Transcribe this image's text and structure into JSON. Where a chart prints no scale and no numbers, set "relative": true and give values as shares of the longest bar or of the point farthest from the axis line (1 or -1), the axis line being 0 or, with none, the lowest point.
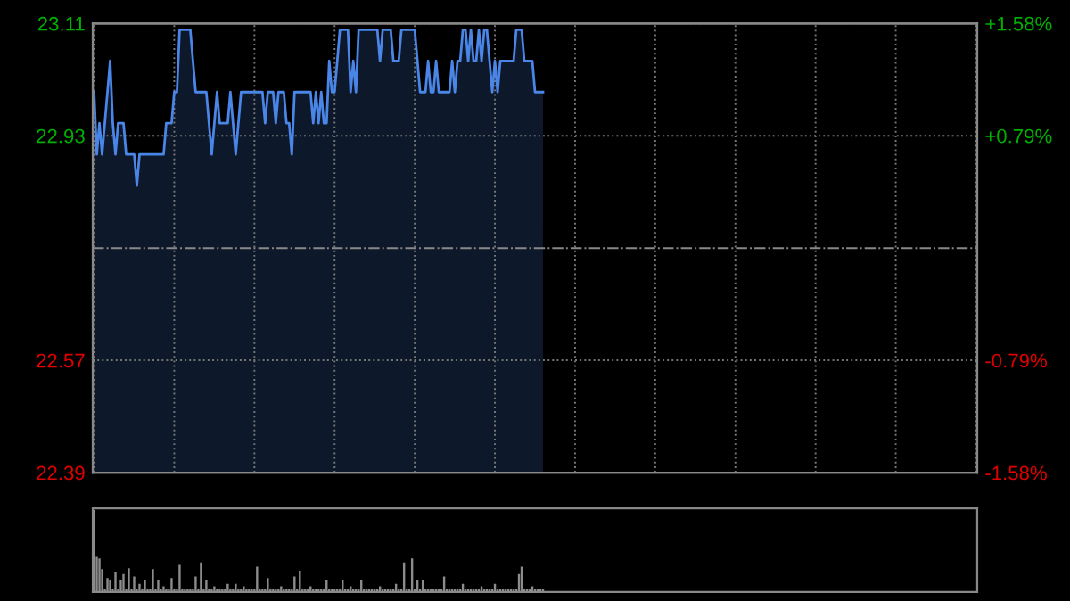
{
  "chart_data": [
    {
      "type": "area",
      "categories": [
        null,
        null,
        null,
        null,
        null,
        null,
        null,
        null,
        null,
        null,
        null,
        null,
        null,
        null,
        null,
        null,
        null,
        null,
        null,
        null,
        null,
        null,
        null,
        null,
        null,
        null,
        null,
        null,
        null,
        null,
        null,
        null,
        null,
        null,
        null,
        null,
        null,
        null,
        null,
        null,
        null,
        null,
        null,
        null,
        null,
        null,
        null,
        null,
        null,
        null,
        null,
        null,
        null,
        null,
        null,
        null,
        null,
        null,
        null,
        null,
        null,
        null,
        null,
        null,
        null,
        null,
        null,
        null,
        null,
        null,
        null,
        null,
        null,
        null,
        null,
        null,
        null,
        null,
        null,
        null,
        null,
        null,
        null,
        null,
        null,
        null,
        null,
        null,
        null,
        null,
        null,
        null,
        null,
        null,
        null,
        null,
        null,
        null,
        null,
        null,
        null,
        null,
        null,
        null,
        null,
        null,
        null,
        null,
        null,
        null,
        null,
        null,
        null,
        null,
        null,
        null,
        null,
        null,
        null,
        null,
        null,
        null,
        null,
        null,
        null,
        null,
        null,
        null,
        null,
        null,
        null,
        null,
        null,
        null,
        null,
        null,
        null,
        null,
        null,
        null,
        null,
        null,
        null,
        null,
        null,
        null,
        null,
        null,
        null,
        null,
        null,
        null,
        null,
        null,
        null,
        null,
        null,
        null,
        null,
        null,
        null,
        null,
        null,
        null,
        null,
        null,
        null,
        null,
        null,
        null,
        null,
        null,
        null,
        null,
        null,
        null,
        null,
        null,
        null,
        null,
        null,
        null,
        null,
        null,
        null,
        null,
        null,
        null,
        null,
        null,
        null,
        null,
        null,
        null,
        null,
        null,
        null,
        null,
        null,
        null,
        null,
        null,
        null,
        null,
        null,
        null,
        null,
        null,
        null,
        null,
        null,
        null,
        null,
        null,
        null,
        null,
        null,
        null,
        null,
        null,
        null,
        null,
        null,
        null,
        null,
        null,
        null,
        null,
        null,
        null,
        null,
        null,
        null,
        null,
        null,
        null,
        null,
        null,
        null,
        null,
        null,
        null,
        null,
        null,
        null,
        null,
        null,
        null,
        null,
        null,
        null,
        null,
        null,
        null,
        null,
        null,
        null,
        null,
        null,
        null,
        null,
        null,
        null,
        null,
        null,
        null,
        null,
        null,
        null,
        null,
        null,
        null,
        null,
        null,
        null,
        null,
        null,
        null,
        null,
        null,
        null,
        null,
        null,
        null,
        null,
        null,
        null,
        null,
        null,
        null,
        null,
        null,
        null,
        null,
        null,
        null,
        null,
        null,
        null,
        null,
        null,
        null,
        null,
        null,
        null,
        null,
        null,
        null,
        null,
        null,
        null,
        null,
        null,
        null,
        null,
        null,
        null,
        null,
        null,
        null,
        null,
        null,
        null,
        null,
        null,
        null,
        null,
        null,
        null,
        null,
        null
      ],
      "series": [
        {
          "color": "#4a86e8",
          "values": [
            23.0,
            22.9,
            22.95,
            22.9,
            22.95,
            23.0,
            23.05,
            22.95,
            22.9,
            22.95,
            22.95,
            22.95,
            22.9,
            22.9,
            22.9,
            22.9,
            22.85,
            22.9,
            22.9,
            22.9,
            22.9,
            22.9,
            22.9,
            22.9,
            22.9,
            22.9,
            22.9,
            22.95,
            22.95,
            22.95,
            23.0,
            23.0,
            23.1,
            23.1,
            23.1,
            23.1,
            23.1,
            23.05,
            23.0,
            23.0,
            23.0,
            23.0,
            23.0,
            22.95,
            22.9,
            22.95,
            23.0,
            22.95,
            22.95,
            22.95,
            22.95,
            23.0,
            22.95,
            22.9,
            22.95,
            23.0,
            23.0,
            23.0,
            23.0,
            23.0,
            23.0,
            23.0,
            23.0,
            23.0,
            22.95,
            23.0,
            23.0,
            23.0,
            22.95,
            23.0,
            23.0,
            23.0,
            22.95,
            22.95,
            22.9,
            23.0,
            23.0,
            23.0,
            23.0,
            23.0,
            23.0,
            23.0,
            22.95,
            23.0,
            22.95,
            23.0,
            22.95,
            22.95,
            23.05,
            23.0,
            23.0,
            23.05,
            23.1,
            23.1,
            23.1,
            23.1,
            23.0,
            23.05,
            23.0,
            23.1,
            23.1,
            23.1,
            23.1,
            23.1,
            23.1,
            23.1,
            23.1,
            23.05,
            23.1,
            23.1,
            23.1,
            23.1,
            23.05,
            23.05,
            23.05,
            23.1,
            23.1,
            23.1,
            23.1,
            23.1,
            23.1,
            23.05,
            23.0,
            23.0,
            23.0,
            23.05,
            23.0,
            23.0,
            23.05,
            23.0,
            23.0,
            23.0,
            23.0,
            23.0,
            23.05,
            23.0,
            23.05,
            23.05,
            23.1,
            23.1,
            23.05,
            23.1,
            23.05,
            23.05,
            23.1,
            23.05,
            23.1,
            23.1,
            23.05,
            23.0,
            23.05,
            23.0,
            23.05,
            23.05,
            23.05,
            23.05,
            23.05,
            23.05,
            23.1,
            23.1,
            23.1,
            23.05,
            23.05,
            23.05,
            23.05,
            23.0,
            23.0,
            23.0,
            23.0,
            null,
            null,
            null,
            null,
            null,
            null,
            null,
            null,
            null,
            null,
            null,
            null,
            null,
            null,
            null,
            null,
            null,
            null,
            null,
            null,
            null,
            null,
            null,
            null,
            null,
            null,
            null,
            null,
            null,
            null,
            null,
            null,
            null,
            null,
            null,
            null,
            null,
            null,
            null,
            null,
            null,
            null,
            null,
            null,
            null,
            null,
            null,
            null,
            null,
            null,
            null,
            null,
            null,
            null,
            null,
            null,
            null,
            null,
            null,
            null,
            null,
            null,
            null,
            null,
            null,
            null,
            null,
            null,
            null,
            null,
            null,
            null,
            null,
            null,
            null,
            null,
            null,
            null,
            null,
            null,
            null,
            null,
            null,
            null,
            null,
            null,
            null,
            null,
            null,
            null,
            null,
            null,
            null,
            null,
            null,
            null,
            null,
            null,
            null,
            null,
            null,
            null,
            null,
            null,
            null,
            null,
            null,
            null,
            null,
            null,
            null,
            null,
            null,
            null,
            null,
            null,
            null,
            null,
            null,
            null,
            null,
            null,
            null,
            null,
            null,
            null,
            null,
            null,
            null,
            null,
            null,
            null,
            null,
            null,
            null,
            null,
            null,
            null,
            null,
            null,
            null,
            null,
            null,
            null,
            null,
            null,
            null,
            null,
            null,
            null,
            null,
            null,
            null,
            null,
            null,
            null,
            null,
            null,
            null,
            null,
            null,
            null
          ]
        }
      ],
      "ylim": [
        22.39,
        23.11
      ],
      "yticks": [
        22.39,
        22.57,
        22.93,
        23.11
      ],
      "y2lim": [
        -1.58,
        1.58
      ],
      "y2ticks": [
        {
          "value": -1.58,
          "label": "-1.58%"
        },
        {
          "value": -0.79,
          "label": "-0.79%"
        },
        {
          "value": 0.79,
          "label": "+0.79%"
        },
        {
          "value": 1.58,
          "label": "+1.58%"
        }
      ],
      "ref_lines": [
        {
          "axis": "y",
          "value": 22.75,
          "label": null,
          "color": "#888888",
          "line_style": "dashdot"
        }
      ],
      "grid": true
    },
    {
      "type": "bar",
      "relative": true,
      "categories": [
        null,
        null,
        null,
        null,
        null,
        null,
        null,
        null,
        null,
        null,
        null,
        null,
        null,
        null,
        null,
        null,
        null,
        null,
        null,
        null,
        null,
        null,
        null,
        null,
        null,
        null,
        null,
        null,
        null,
        null,
        null,
        null,
        null,
        null,
        null,
        null,
        null,
        null,
        null,
        null,
        null,
        null,
        null,
        null,
        null,
        null,
        null,
        null,
        null,
        null,
        null,
        null,
        null,
        null,
        null,
        null,
        null,
        null,
        null,
        null,
        null,
        null,
        null,
        null,
        null,
        null,
        null,
        null,
        null,
        null,
        null,
        null,
        null,
        null,
        null,
        null,
        null,
        null,
        null,
        null,
        null,
        null,
        null,
        null,
        null,
        null,
        null,
        null,
        null,
        null,
        null,
        null,
        null,
        null,
        null,
        null,
        null,
        null,
        null,
        null,
        null,
        null,
        null,
        null,
        null,
        null,
        null,
        null,
        null,
        null,
        null,
        null,
        null,
        null,
        null,
        null,
        null,
        null,
        null,
        null,
        null,
        null,
        null,
        null,
        null,
        null,
        null,
        null,
        null,
        null,
        null,
        null,
        null,
        null,
        null,
        null,
        null,
        null,
        null,
        null,
        null,
        null,
        null,
        null,
        null,
        null,
        null,
        null,
        null,
        null,
        null,
        null,
        null,
        null,
        null,
        null,
        null,
        null,
        null,
        null,
        null,
        null,
        null,
        null,
        null,
        null,
        null,
        null,
        null,
        null,
        null,
        null,
        null,
        null,
        null,
        null,
        null,
        null,
        null,
        null,
        null,
        null,
        null,
        null,
        null,
        null,
        null,
        null,
        null,
        null,
        null,
        null,
        null,
        null,
        null,
        null,
        null,
        null,
        null,
        null,
        null,
        null,
        null,
        null,
        null,
        null,
        null,
        null,
        null,
        null,
        null,
        null,
        null,
        null,
        null,
        null,
        null,
        null,
        null,
        null,
        null,
        null,
        null,
        null,
        null,
        null,
        null,
        null,
        null,
        null,
        null,
        null,
        null,
        null,
        null,
        null,
        null,
        null,
        null,
        null,
        null,
        null,
        null,
        null,
        null,
        null,
        null,
        null,
        null,
        null,
        null,
        null,
        null,
        null,
        null,
        null,
        null,
        null,
        null,
        null,
        null,
        null,
        null,
        null,
        null,
        null,
        null,
        null,
        null,
        null,
        null,
        null,
        null,
        null,
        null,
        null,
        null,
        null,
        null,
        null,
        null,
        null,
        null,
        null,
        null,
        null,
        null,
        null,
        null,
        null,
        null,
        null,
        null,
        null,
        null,
        null,
        null,
        null,
        null,
        null,
        null,
        null,
        null,
        null,
        null,
        null,
        null,
        null,
        null,
        null,
        null,
        null,
        null,
        null,
        null,
        null,
        null,
        null,
        null,
        null,
        null,
        null,
        null,
        null,
        null,
        null,
        null,
        null,
        null,
        null,
        null
      ],
      "series": [
        {
          "color": "#8c8c8c",
          "values": [
            1.0,
            0.43,
            0.41,
            0.28,
            0.04,
            0.17,
            0.14,
            0.04,
            0.24,
            0.04,
            0.14,
            0.22,
            0.04,
            0.29,
            0.04,
            0.19,
            0.04,
            0.1,
            0.04,
            0.14,
            0.04,
            0.04,
            0.28,
            0.04,
            0.14,
            0.04,
            0.07,
            0.04,
            0.04,
            0.17,
            0.04,
            0.04,
            0.33,
            0.04,
            0.04,
            0.04,
            0.04,
            0.04,
            0.19,
            0.04,
            0.36,
            0.04,
            0.14,
            0.04,
            0.04,
            0.07,
            0.04,
            0.04,
            0.04,
            0.04,
            0.1,
            0.04,
            0.04,
            0.1,
            0.04,
            0.04,
            0.07,
            0.04,
            0.04,
            0.04,
            0.04,
            0.31,
            0.04,
            0.04,
            0.04,
            0.17,
            0.04,
            0.04,
            0.04,
            0.04,
            0.07,
            0.04,
            0.04,
            0.04,
            0.04,
            0.19,
            0.04,
            0.26,
            0.04,
            0.04,
            0.04,
            0.07,
            0.04,
            0.04,
            0.04,
            0.04,
            0.04,
            0.15,
            0.04,
            0.04,
            0.04,
            0.04,
            0.04,
            0.14,
            0.04,
            0.04,
            0.07,
            0.04,
            0.04,
            0.04,
            0.14,
            0.04,
            0.04,
            0.04,
            0.04,
            0.04,
            0.04,
            0.07,
            0.04,
            0.04,
            0.04,
            0.04,
            0.04,
            0.1,
            0.04,
            0.04,
            0.36,
            0.04,
            0.04,
            0.41,
            0.04,
            0.15,
            0.04,
            0.14,
            0.04,
            0.04,
            0.04,
            0.04,
            0.04,
            0.04,
            0.04,
            0.19,
            0.04,
            0.04,
            0.04,
            0.04,
            0.04,
            0.04,
            0.1,
            0.04,
            0.04,
            0.04,
            0.04,
            0.04,
            0.04,
            0.07,
            0.04,
            0.04,
            0.04,
            0.04,
            0.1,
            0.04,
            0.04,
            0.04,
            0.04,
            0.04,
            0.04,
            0.04,
            0.04,
            0.22,
            0.31,
            0.04,
            0.04,
            0.04,
            0.07,
            0.04,
            0.04,
            0.04,
            0.04,
            null,
            null,
            null,
            null,
            null,
            null,
            null,
            null,
            null,
            null,
            null,
            null,
            null,
            null,
            null,
            null,
            null,
            null,
            null,
            null,
            null,
            null,
            null,
            null,
            null,
            null,
            null,
            null,
            null,
            null,
            null,
            null,
            null,
            null,
            null,
            null,
            null,
            null,
            null,
            null,
            null,
            null,
            null,
            null,
            null,
            null,
            null,
            null,
            null,
            null,
            null,
            null,
            null,
            null,
            null,
            null,
            null,
            null,
            null,
            null,
            null,
            null,
            null,
            null,
            null,
            null,
            null,
            null,
            null,
            null,
            null,
            null,
            null,
            null,
            null,
            null,
            null,
            null,
            null,
            null,
            null,
            null,
            null,
            null,
            null,
            null,
            null,
            null,
            null,
            null,
            null,
            null,
            null,
            null,
            null,
            null,
            null,
            null,
            null,
            null,
            null,
            null,
            null,
            null,
            null,
            null,
            null,
            null,
            null,
            null,
            null,
            null,
            null,
            null,
            null,
            null,
            null,
            null,
            null,
            null,
            null,
            null,
            null,
            null,
            null,
            null,
            null,
            null,
            null,
            null,
            null,
            null,
            null,
            null,
            null,
            null,
            null,
            null,
            null,
            null,
            null,
            null,
            null,
            null,
            null,
            null,
            null,
            null,
            null,
            null,
            null,
            null,
            null,
            null,
            null,
            null,
            null,
            null,
            null,
            null,
            null,
            null
          ]
        }
      ]
    }
  ]
}
